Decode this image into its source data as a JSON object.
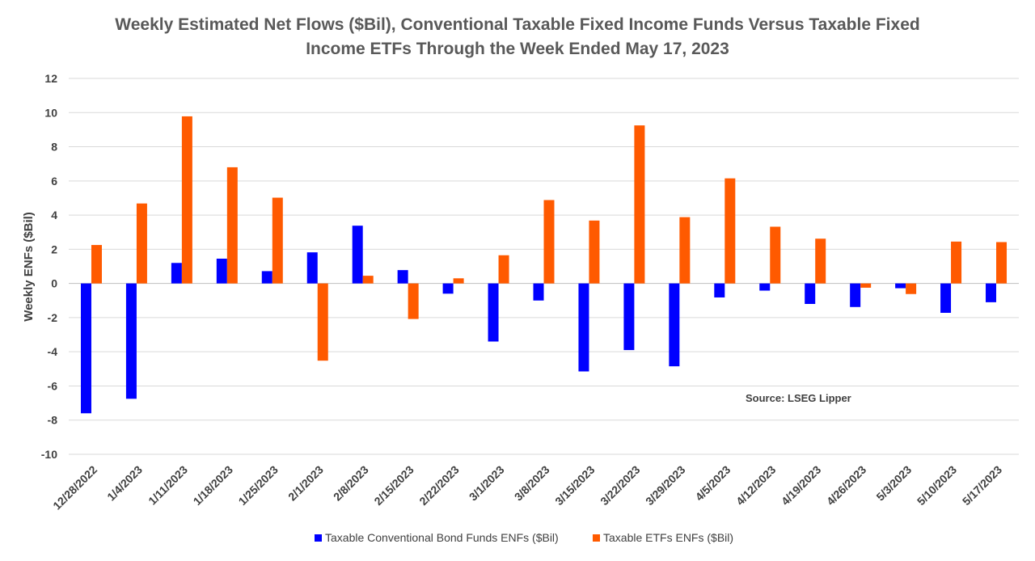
{
  "chart_data": {
    "type": "bar",
    "title_lines": [
      "Weekly Estimated Net Flows ($Bil), Conventional Taxable Fixed Income Funds Versus Taxable Fixed",
      "Income ETFs Through the Week Ended May 17, 2023"
    ],
    "ylabel": "Weekly ENFs ($Bil)",
    "xlabel": "",
    "ylim": [
      -10,
      12
    ],
    "yticks": [
      "12",
      "10",
      "8",
      "6",
      "4",
      "2",
      "0",
      "-2",
      "-4",
      "-6",
      "-8",
      "-10"
    ],
    "grid": true,
    "legend_position": "bottom",
    "source_note": "Source: LSEG Lipper",
    "categories": [
      "12/28/2022",
      "1/4/2023",
      "1/11/2023",
      "1/18/2023",
      "1/25/2023",
      "2/1/2023",
      "2/8/2023",
      "2/15/2023",
      "2/22/2023",
      "3/1/2023",
      "3/8/2023",
      "3/15/2023",
      "3/22/2023",
      "3/29/2023",
      "4/5/2023",
      "4/12/2023",
      "4/19/2023",
      "4/26/2023",
      "5/3/2023",
      "5/10/2023",
      "5/17/2023"
    ],
    "series": [
      {
        "name": "Taxable Conventional Bond Funds ENFs ($Bil)",
        "color": "#0000ff",
        "values": [
          -7.6,
          -6.75,
          1.2,
          1.45,
          0.72,
          1.82,
          3.38,
          0.78,
          -0.6,
          -3.4,
          -1.0,
          -5.15,
          -3.9,
          -4.85,
          -0.82,
          -0.42,
          -1.2,
          -1.38,
          -0.28,
          -1.72,
          -1.1
        ]
      },
      {
        "name": "Taxable ETFs ENFs ($Bil)",
        "color": "#ff5a00",
        "values": [
          2.25,
          4.68,
          9.78,
          6.8,
          5.02,
          -4.52,
          0.45,
          -2.08,
          0.3,
          1.65,
          4.88,
          3.68,
          9.25,
          3.88,
          6.15,
          3.32,
          2.62,
          -0.25,
          -0.62,
          2.45,
          2.42
        ]
      }
    ]
  }
}
